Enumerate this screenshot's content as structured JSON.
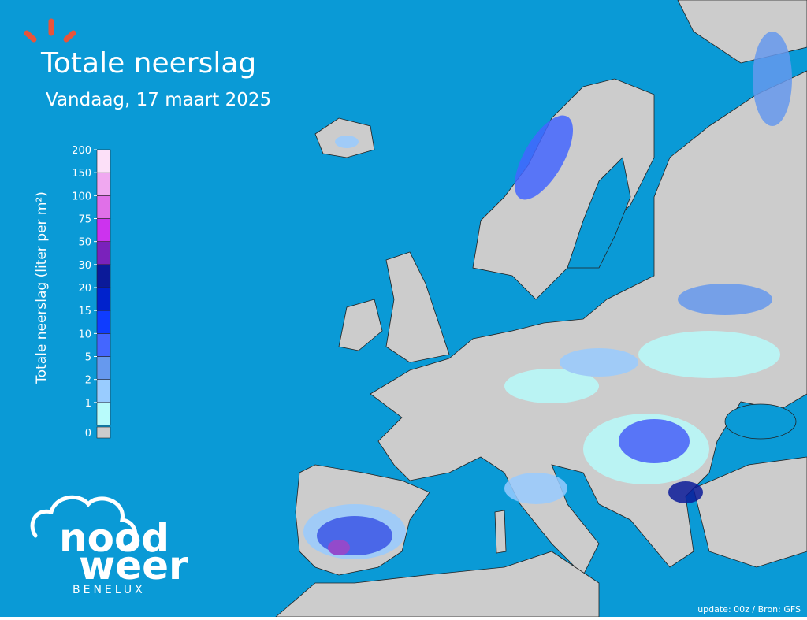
{
  "header": {
    "title": "Totale neerslag",
    "subtitle": "Vandaag, 17 maart 2025"
  },
  "legend": {
    "title": "Totale neerslag (liter per m²)",
    "ticks": [
      1,
      2,
      5,
      10,
      15,
      20,
      30,
      50,
      75,
      100,
      150,
      200
    ],
    "colors": [
      "#b8fbfb",
      "#99ccff",
      "#6699ee",
      "#4466ff",
      "#0f3cff",
      "#0022cc",
      "#0b1a99",
      "#7a22bb",
      "#cc33ee",
      "#e070e8",
      "#f0a8f0",
      "#fce0f8"
    ],
    "zero": {
      "label": 0,
      "color": "#cccccc"
    }
  },
  "logo": {
    "line1": "nood",
    "line2": "weer",
    "region": "BENELUX"
  },
  "footer": "update: 00z / Bron: GFS"
}
